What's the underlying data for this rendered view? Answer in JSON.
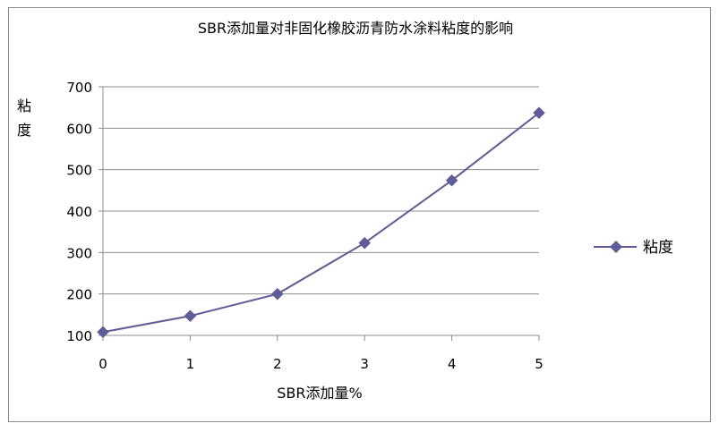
{
  "chart_data": {
    "type": "line",
    "title": "SBR添加量对非固化橡胶沥青防水涂料粘度的影响",
    "xlabel": "SBR添加量%",
    "ylabel": "粘度",
    "x": [
      0,
      1,
      2,
      3,
      4,
      5
    ],
    "xlim": [
      0,
      5
    ],
    "ylim": [
      100,
      700
    ],
    "yticks": [
      100,
      200,
      300,
      400,
      500,
      600,
      700
    ],
    "grid": true,
    "legend_position": "right",
    "series": [
      {
        "name": "粘度",
        "values": [
          108,
          147,
          200,
          323,
          474,
          637
        ],
        "marker": "diamond",
        "color": "#5f5b96"
      }
    ],
    "colors": {
      "series": "#5f5b96",
      "grid": "#8c8c8c",
      "axis": "#8c8c8c"
    }
  }
}
